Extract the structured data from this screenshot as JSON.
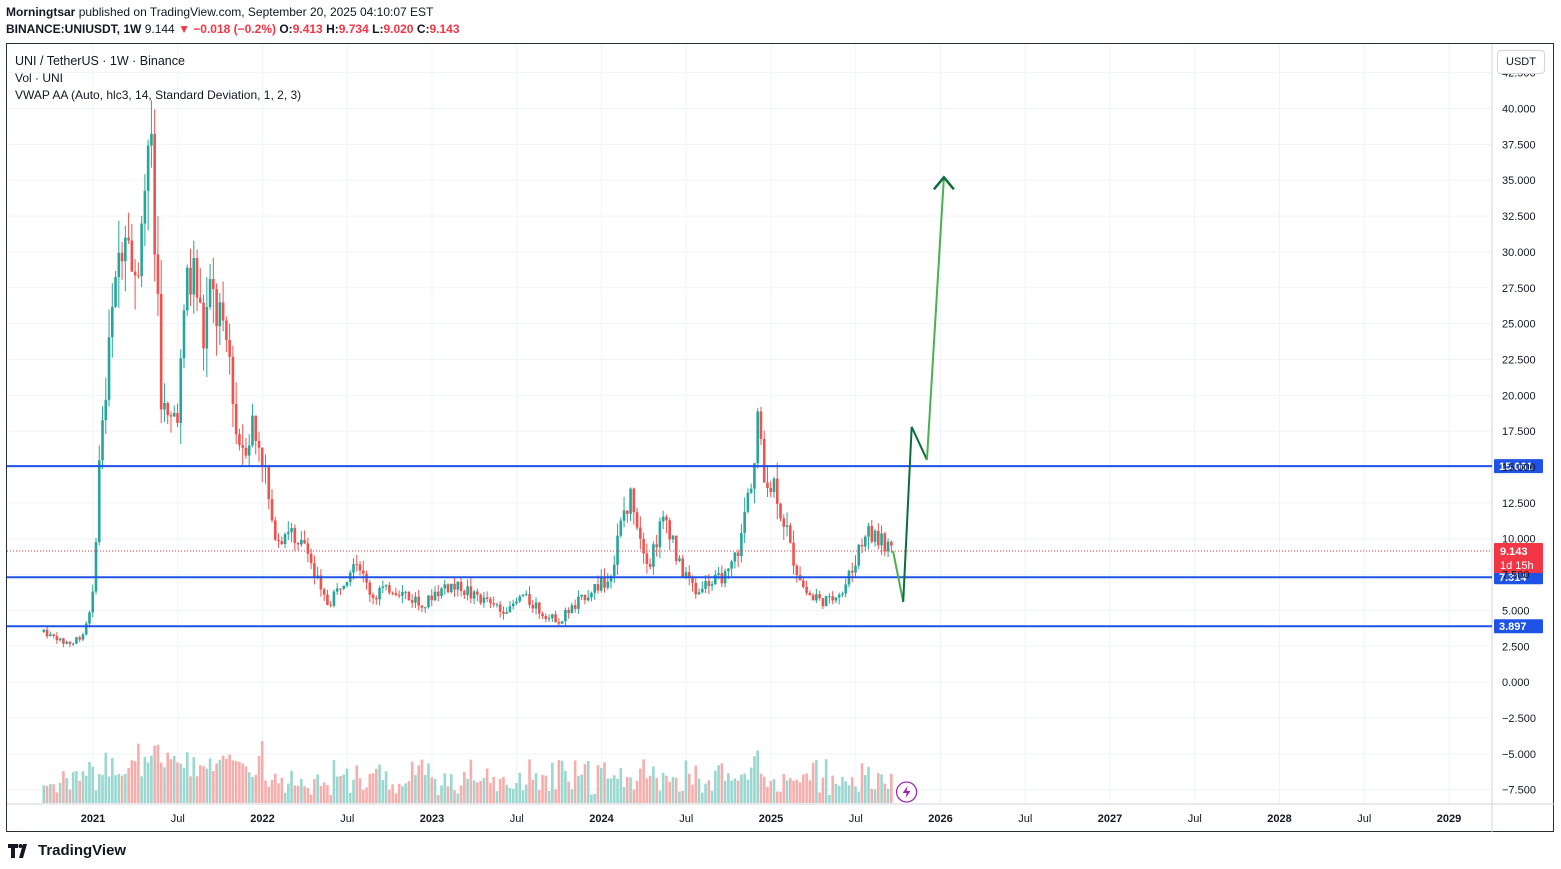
{
  "header": {
    "author": "Morningtsar",
    "published_text": "published on TradingView.com, September 20, 2025 04:10:07 EST",
    "symbol": "BINANCE:UNIUSDT, 1W",
    "last": "9.144",
    "change": "▼ −0.018 (−0.2%)",
    "o_label": "O:",
    "o_value": "9.413",
    "h_label": "H:",
    "h_value": "9.734",
    "l_label": "L:",
    "l_value": "9.020",
    "c_label": "C:",
    "c_value": "9.143"
  },
  "legend": {
    "title": "UNI / TetherUS · 1W · Binance",
    "volume": "Vol · UNI",
    "indicator": "VWAP AA (Auto, hlc3, 14, Standard Deviation, 1, 2, 3)"
  },
  "currency_button": "USDT",
  "footer": {
    "brand": "TradingView"
  },
  "colors": {
    "up": "#26a69a",
    "down": "#ef5350",
    "level_line": "#1e53e5",
    "arrow_dark": "#0b6e3a",
    "arrow_light": "#4caf50",
    "price_tag": "#f23645"
  },
  "chart_data": {
    "type": "candlestick",
    "title": "UNI / TetherUS · 1W · Binance",
    "ylim": [
      -8.5,
      44.5
    ],
    "y_ticks": [
      "42.500",
      "40.000",
      "37.500",
      "35.000",
      "32.500",
      "30.000",
      "27.500",
      "25.000",
      "22.500",
      "20.000",
      "17.500",
      "15.000",
      "12.500",
      "10.000",
      "7.500",
      "5.000",
      "2.500",
      "0.000",
      "−2.500",
      "−5.000",
      "−7.500"
    ],
    "y_tick_values": [
      42.5,
      40,
      37.5,
      35,
      32.5,
      30,
      27.5,
      25,
      22.5,
      20,
      17.5,
      15,
      12.5,
      10,
      7.5,
      5,
      2.5,
      0,
      -2.5,
      -5,
      -7.5
    ],
    "x_ticks": [
      "2021",
      "Jul",
      "2022",
      "Jul",
      "2023",
      "Jul",
      "2024",
      "Jul",
      "2025",
      "Jul",
      "2026",
      "Jul",
      "2027",
      "Jul",
      "2028",
      "Jul",
      "2029"
    ],
    "x_tick_dates": [
      2021.0,
      2021.5,
      2022.0,
      2022.5,
      2023.0,
      2023.5,
      2024.0,
      2024.5,
      2025.0,
      2025.5,
      2026.0,
      2026.5,
      2027.0,
      2027.5,
      2028.0,
      2028.5,
      2029.0
    ],
    "horizontal_levels": [
      {
        "value": 15.061,
        "label": "15.061"
      },
      {
        "value": 7.314,
        "label": "7.314"
      },
      {
        "value": 3.897,
        "label": "3.897"
      }
    ],
    "last_price": {
      "value": 9.143,
      "label": "9.143",
      "countdown": "1d 15h"
    },
    "price_path": [
      [
        2020.71,
        3.5
      ],
      [
        2020.75,
        3.2
      ],
      [
        2020.85,
        2.7
      ],
      [
        2020.93,
        3.1
      ],
      [
        2021.0,
        6.0
      ],
      [
        2021.05,
        18.0
      ],
      [
        2021.1,
        24.0
      ],
      [
        2021.15,
        29.0
      ],
      [
        2021.2,
        33.0
      ],
      [
        2021.25,
        27.0
      ],
      [
        2021.3,
        35.0
      ],
      [
        2021.33,
        40.0
      ],
      [
        2021.36,
        33.0
      ],
      [
        2021.4,
        20.0
      ],
      [
        2021.45,
        17.0
      ],
      [
        2021.5,
        19.0
      ],
      [
        2021.55,
        27.0
      ],
      [
        2021.6,
        29.0
      ],
      [
        2021.65,
        24.0
      ],
      [
        2021.7,
        27.0
      ],
      [
        2021.75,
        25.0
      ],
      [
        2021.8,
        22.0
      ],
      [
        2021.85,
        18.0
      ],
      [
        2021.9,
        16.5
      ],
      [
        2021.95,
        18.0
      ],
      [
        2022.0,
        16.0
      ],
      [
        2022.05,
        11.0
      ],
      [
        2022.1,
        10.0
      ],
      [
        2022.15,
        11.0
      ],
      [
        2022.2,
        9.0
      ],
      [
        2022.25,
        10.0
      ],
      [
        2022.3,
        8.0
      ],
      [
        2022.35,
        6.0
      ],
      [
        2022.4,
        5.5
      ],
      [
        2022.45,
        6.5
      ],
      [
        2022.5,
        7.5
      ],
      [
        2022.55,
        9.0
      ],
      [
        2022.6,
        7.0
      ],
      [
        2022.65,
        6.0
      ],
      [
        2022.75,
        6.5
      ],
      [
        2022.85,
        6.0
      ],
      [
        2022.95,
        5.5
      ],
      [
        2023.05,
        6.3
      ],
      [
        2023.15,
        6.8
      ],
      [
        2023.25,
        6.0
      ],
      [
        2023.35,
        5.3
      ],
      [
        2023.45,
        5.0
      ],
      [
        2023.55,
        6.0
      ],
      [
        2023.65,
        4.8
      ],
      [
        2023.75,
        4.3
      ],
      [
        2023.85,
        5.5
      ],
      [
        2023.95,
        6.5
      ],
      [
        2024.05,
        7.3
      ],
      [
        2024.12,
        11.0
      ],
      [
        2024.18,
        13.0
      ],
      [
        2024.22,
        11.0
      ],
      [
        2024.28,
        8.0
      ],
      [
        2024.35,
        11.0
      ],
      [
        2024.4,
        10.5
      ],
      [
        2024.48,
        7.5
      ],
      [
        2024.55,
        6.5
      ],
      [
        2024.65,
        7.0
      ],
      [
        2024.75,
        7.5
      ],
      [
        2024.82,
        9.5
      ],
      [
        2024.88,
        14.0
      ],
      [
        2024.92,
        18.0
      ],
      [
        2024.97,
        14.0
      ],
      [
        2025.02,
        13.5
      ],
      [
        2025.08,
        11.0
      ],
      [
        2025.12,
        9.0
      ],
      [
        2025.18,
        7.0
      ],
      [
        2025.25,
        6.0
      ],
      [
        2025.3,
        5.5
      ],
      [
        2025.35,
        5.8
      ],
      [
        2025.42,
        6.5
      ],
      [
        2025.5,
        8.5
      ],
      [
        2025.55,
        10.5
      ],
      [
        2025.6,
        10.2
      ],
      [
        2025.66,
        9.7
      ],
      [
        2025.72,
        9.14
      ]
    ]
  }
}
